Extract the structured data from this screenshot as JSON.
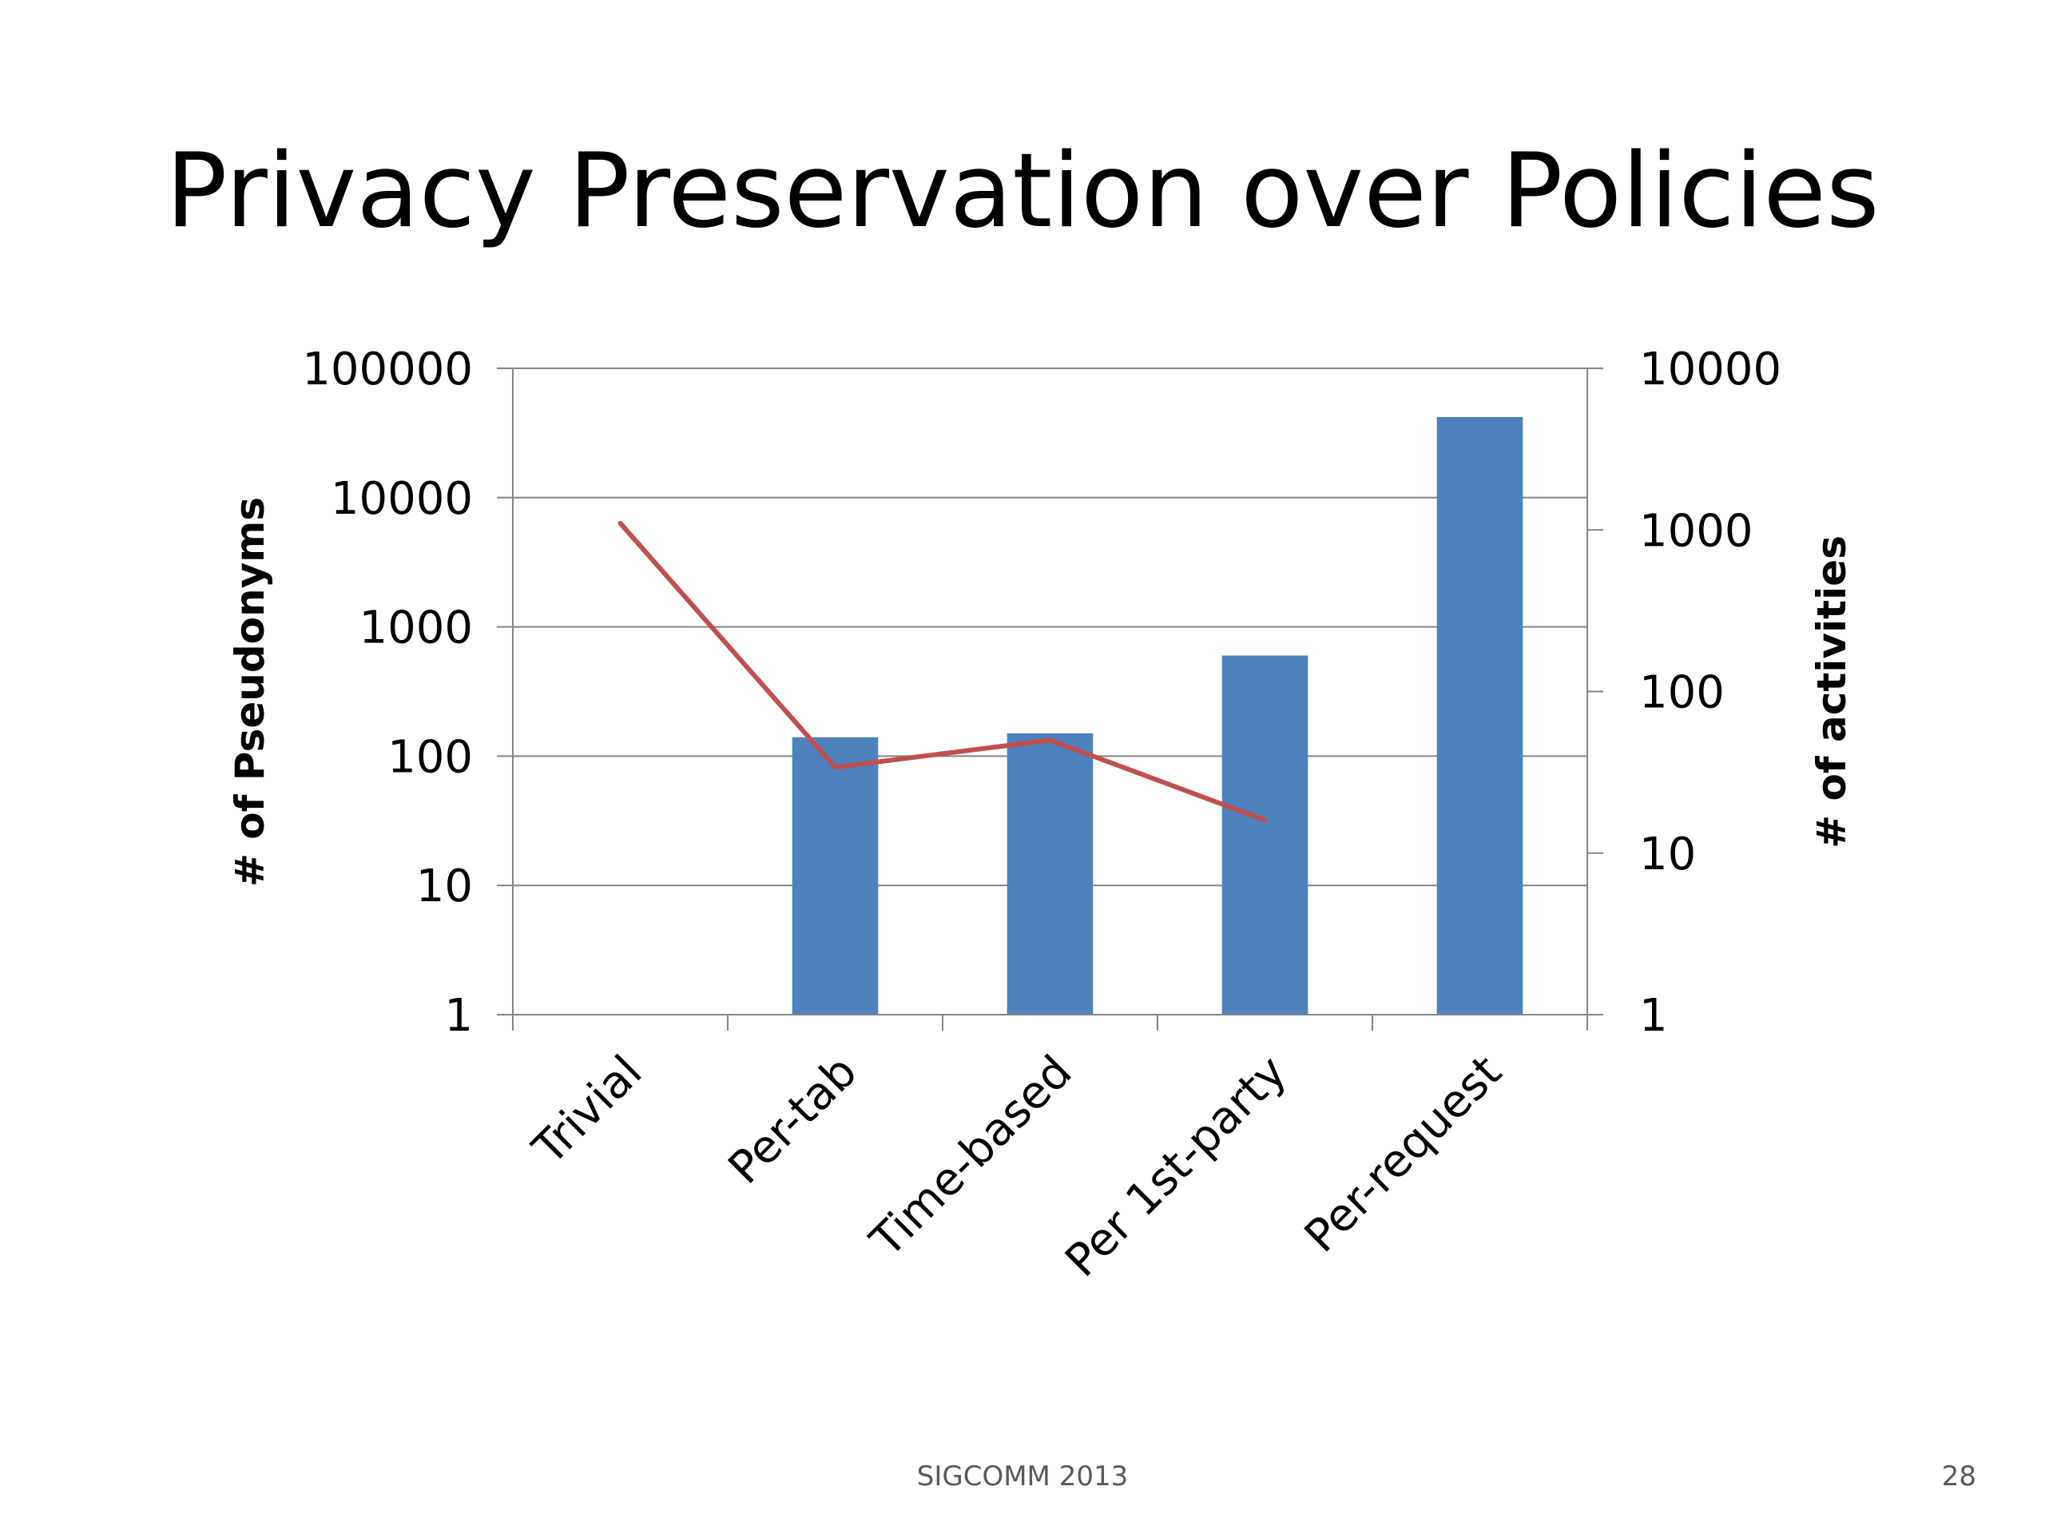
{
  "slide": {
    "title": "Privacy Preservation over Policies",
    "footer_text": "SIGCOMM 2013",
    "page_number": "28"
  },
  "colors": {
    "bar": "#4F81BD",
    "line": "#C0504D",
    "grid": "#868686",
    "axis": "#868686"
  },
  "chart_data": {
    "type": "bar",
    "categories": [
      "Trivial",
      "Per-tab",
      "Time-based",
      "Per 1st-party",
      "Per-request"
    ],
    "series": [
      {
        "chart_type": "bar",
        "axis": "left",
        "values": [
          null,
          140,
          150,
          600,
          42000
        ]
      },
      {
        "chart_type": "line",
        "axis": "right",
        "values": [
          1100,
          34,
          50,
          16,
          null
        ]
      }
    ],
    "y_left": {
      "label": "# of Pseudonyms",
      "scale": "log",
      "range": [
        1,
        100000
      ],
      "ticks": [
        1,
        10,
        100,
        1000,
        10000,
        100000
      ],
      "tick_labels": [
        "1",
        "10",
        "100",
        "1000",
        "10000",
        "100000"
      ]
    },
    "y_right": {
      "label": "# of activities",
      "scale": "log",
      "range": [
        1,
        10000
      ],
      "ticks": [
        1,
        10,
        100,
        1000,
        10000
      ],
      "tick_labels": [
        "1",
        "10",
        "100",
        "1000",
        "10000"
      ]
    },
    "x_tick_rotation": "45 degrees",
    "grid": true,
    "legend": "none"
  }
}
